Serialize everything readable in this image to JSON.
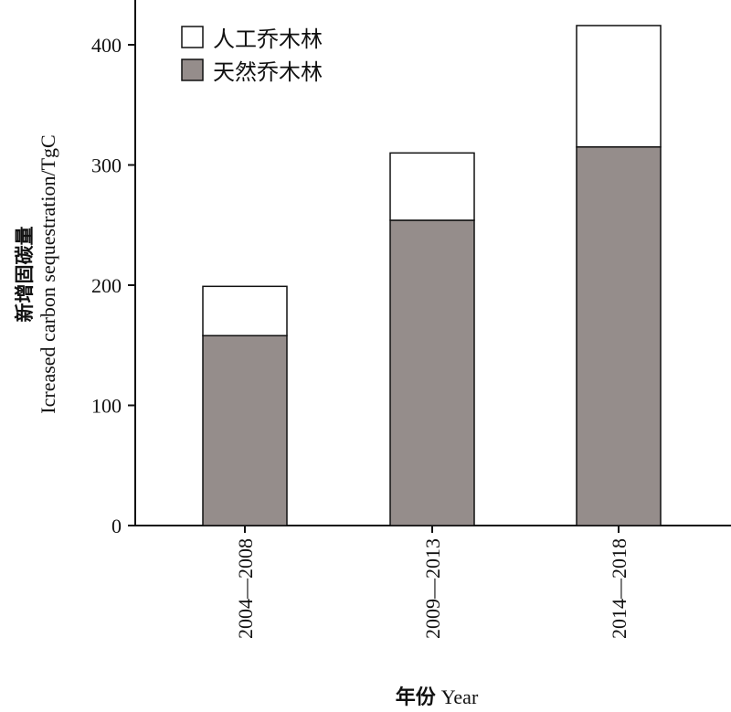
{
  "chart_data": {
    "type": "bar",
    "stacked": true,
    "title": "",
    "xlabel": {
      "cn": "年份",
      "en": "Year"
    },
    "ylabel": {
      "cn": "新增固碳量",
      "en": "Icreased carbon sequestration/TgC"
    },
    "ylim": [
      0,
      450
    ],
    "yticks": [
      0,
      100,
      200,
      300,
      400
    ],
    "categories": [
      "2004—2008",
      "2009—2013",
      "2014—2018"
    ],
    "series": [
      {
        "name": "天然乔木林",
        "values": [
          158,
          254,
          315
        ],
        "color": "#958d8b"
      },
      {
        "name": "人工乔木林",
        "values": [
          41,
          56,
          101
        ],
        "color": "#ffffff"
      }
    ],
    "legend_position": "top-left",
    "grid": false
  }
}
